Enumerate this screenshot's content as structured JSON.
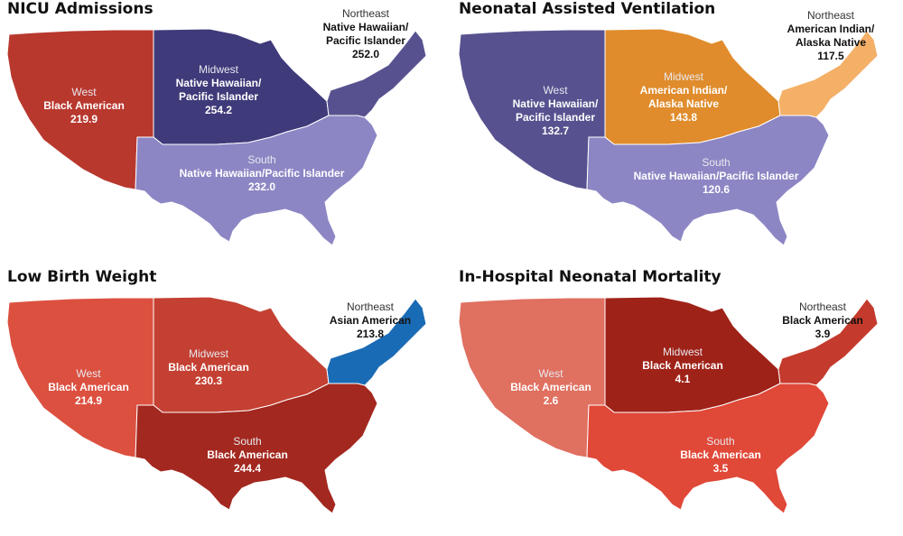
{
  "panels": [
    {
      "title": "NICU Admissions",
      "regions": {
        "west": {
          "region": "West",
          "group": "Black American",
          "value": "219.9",
          "color": "#b8382e"
        },
        "midwest": {
          "region": "Midwest",
          "group": "Native Hawaiian/ Pacific Islander",
          "value": "254.2",
          "color": "#3f3a7a"
        },
        "northeast": {
          "region": "Northeast",
          "group": "Native Hawaiian/ Pacific Islander",
          "value": "252.0",
          "color": "#57528f"
        },
        "south": {
          "region": "South",
          "group": "Native Hawaiian/Pacific Islander",
          "value": "232.0",
          "color": "#8c86c4"
        }
      }
    },
    {
      "title": "Neonatal Assisted Ventilation",
      "regions": {
        "west": {
          "region": "West",
          "group": "Native Hawaiian/ Pacific Islander",
          "value": "132.7",
          "color": "#57528f"
        },
        "midwest": {
          "region": "Midwest",
          "group": "American Indian/ Alaska Native",
          "value": "143.8",
          "color": "#e08c2c"
        },
        "northeast": {
          "region": "Northeast",
          "group": "American Indian/ Alaska Native",
          "value": "117.5",
          "color": "#f4b067"
        },
        "south": {
          "region": "South",
          "group": "Native Hawaiian/Pacific Islander",
          "value": "120.6",
          "color": "#8c86c4"
        }
      }
    },
    {
      "title": "Low Birth Weight",
      "regions": {
        "west": {
          "region": "West",
          "group": "Black American",
          "value": "214.9",
          "color": "#dc5040"
        },
        "midwest": {
          "region": "Midwest",
          "group": "Black American",
          "value": "230.3",
          "color": "#c44032"
        },
        "northeast": {
          "region": "Northeast",
          "group": "Asian American",
          "value": "213.8",
          "color": "#1a6bb5"
        },
        "south": {
          "region": "South",
          "group": "Black American",
          "value": "244.4",
          "color": "#a3281f"
        }
      }
    },
    {
      "title": "In-Hospital Neonatal Mortality",
      "regions": {
        "west": {
          "region": "West",
          "group": "Black American",
          "value": "2.6",
          "color": "#e07060"
        },
        "midwest": {
          "region": "Midwest",
          "group": "Black American",
          "value": "4.1",
          "color": "#9f2218"
        },
        "northeast": {
          "region": "Northeast",
          "group": "Black American",
          "value": "3.9",
          "color": "#c43a2c"
        },
        "south": {
          "region": "South",
          "group": "Black American",
          "value": "3.5",
          "color": "#e04838"
        }
      }
    }
  ]
}
